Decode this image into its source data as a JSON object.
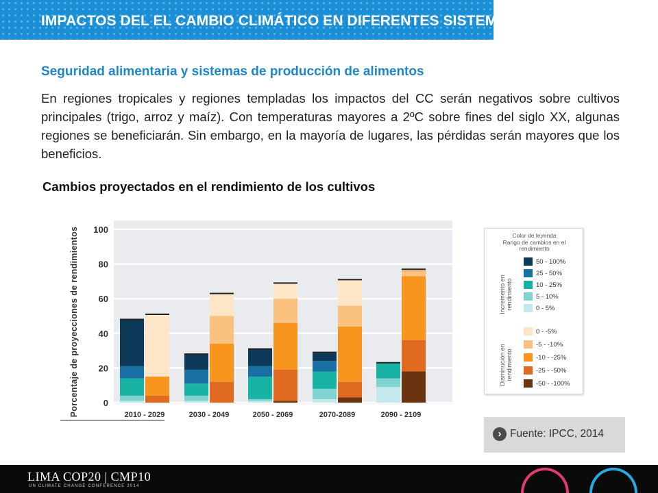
{
  "header": {
    "title": "IMPACTOS DEL EL CAMBIO CLIMÁTICO EN DIFERENTES SISTEMAS"
  },
  "section": {
    "subtitle": "Seguridad alimentaria y sistemas de producción de alimentos",
    "paragraph": "En regiones tropicales y regiones templadas los impactos del CC serán negativos sobre cultivos principales (trigo, arroz y maíz). Con temperaturas mayores a 2ºC sobre fines del siglo XX, algunas regiones se beneficiarán. Sin embargo, en la mayoría de lugares, las pérdidas serán mayores que los beneficios.",
    "chart_heading": "Cambios proyectados en  el rendimiento de los cultivos"
  },
  "chart_data": {
    "type": "bar",
    "stacked": true,
    "ylabel": "Porcentaje de proyecciones de rendimientos",
    "ylim": [
      0,
      100
    ],
    "yticks": [
      0,
      20,
      40,
      60,
      80,
      100
    ],
    "categories": [
      "2010 - 2029",
      "2030 - 2049",
      "2050 - 2069",
      "2070-2089",
      "2090 - 2109"
    ],
    "grid": "horizontal",
    "increase_bars": [
      [
        1,
        3,
        10,
        7,
        27
      ],
      [
        1,
        3,
        7,
        8,
        9
      ],
      [
        1,
        1,
        13,
        6,
        10
      ],
      [
        2,
        6,
        10,
        6,
        5
      ],
      [
        9,
        5,
        9,
        0,
        0
      ]
    ],
    "decrease_bars": [
      [
        0,
        4,
        11,
        0,
        36
      ],
      [
        0,
        12,
        22,
        16,
        13
      ],
      [
        1,
        18,
        27,
        14,
        9
      ],
      [
        3,
        9,
        32,
        12,
        15
      ],
      [
        18,
        18,
        37,
        4,
        0
      ]
    ],
    "bar_order_note": "segments listed bottom to top per bar",
    "legend": {
      "title_line1": "Color de leyenda",
      "title_line2": "Rango de cambios en el rendimiento",
      "increase_label": "Incremento en rendimiento",
      "decrease_label": "Disminución en rendimiento",
      "increase_items": [
        {
          "label": "50 - 100%",
          "color": "#0e3a5a"
        },
        {
          "label": "25 - 50%",
          "color": "#1a6fa4"
        },
        {
          "label": "10 - 25%",
          "color": "#18b3a4"
        },
        {
          "label": "5 - 10%",
          "color": "#7fd3d1"
        },
        {
          "label": "0 - 5%",
          "color": "#c4e9ec"
        }
      ],
      "decrease_items": [
        {
          "label": "0 - -5%",
          "color": "#fde6c8"
        },
        {
          "label": "-5 - -10%",
          "color": "#fbc27f"
        },
        {
          "label": "-10 - -25%",
          "color": "#f7951f"
        },
        {
          "label": "-25 - -50%",
          "color": "#e06a20"
        },
        {
          "label": "-50 - -100%",
          "color": "#6a3410"
        }
      ]
    }
  },
  "source": {
    "text": "Fuente: IPCC, 2014"
  },
  "footer": {
    "logo_text": "LIMA COP20 | CMP10",
    "sub_text": "UN CLIMATE CHANGE CONFERENCE 2014"
  }
}
